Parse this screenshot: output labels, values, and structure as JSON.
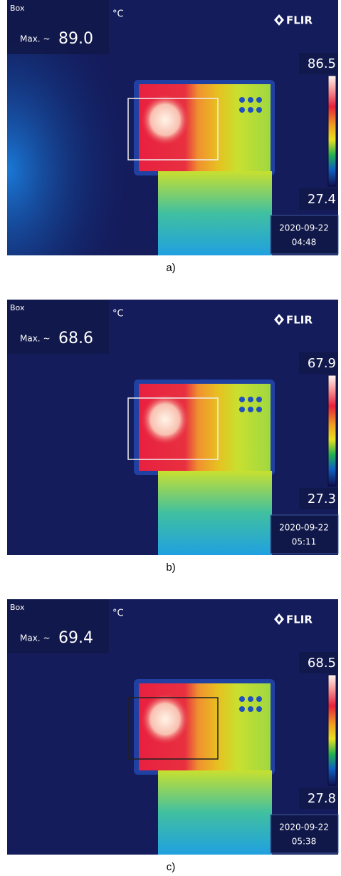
{
  "panels": [
    {
      "box_label": "Box",
      "unit": "°C",
      "max_label": "Max. ~",
      "max_value": "89.0",
      "brand": "FLIR",
      "scale_max": "86.5",
      "scale_min": "27.4",
      "date": "2020-09-22",
      "time": "04:48",
      "caption": "a)"
    },
    {
      "box_label": "Box",
      "unit": "°C",
      "max_label": "Max. ~",
      "max_value": "68.6",
      "brand": "FLIR",
      "scale_max": "67.9",
      "scale_min": "27.3",
      "date": "2020-09-22",
      "time": "05:11",
      "caption": "b)"
    },
    {
      "box_label": "Box",
      "unit": "°C",
      "max_label": "Max. ~",
      "max_value": "69.4",
      "brand": "FLIR",
      "scale_max": "68.5",
      "scale_min": "27.8",
      "date": "2020-09-22",
      "time": "05:38",
      "caption": "c)"
    }
  ]
}
